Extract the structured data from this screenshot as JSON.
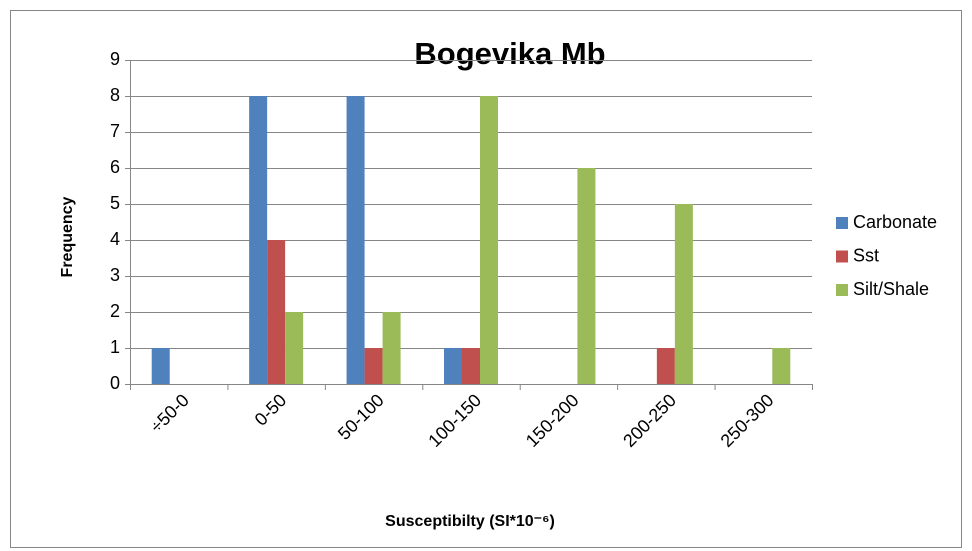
{
  "chart_data": {
    "type": "bar",
    "title": "Bogevika Mb",
    "x_label": "Susceptibilty (SI*10⁻⁶)",
    "y_label": "Frequency",
    "categories": [
      "÷50-0",
      "0-50",
      "50-100",
      "100-150",
      "150-200",
      "200-250",
      "250-300"
    ],
    "series": [
      {
        "name": "Carbonate",
        "color": "#4f81bd",
        "values": [
          1,
          8,
          8,
          1,
          0,
          0,
          0
        ]
      },
      {
        "name": "Sst",
        "color": "#c0504d",
        "values": [
          0,
          4,
          1,
          1,
          0,
          1,
          0
        ]
      },
      {
        "name": "Silt/Shale",
        "color": "#9bbb59",
        "values": [
          0,
          2,
          2,
          8,
          6,
          5,
          1
        ]
      }
    ],
    "ylim": [
      0,
      9
    ],
    "yticks": [
      0,
      1,
      2,
      3,
      4,
      5,
      6,
      7,
      8,
      9
    ],
    "grid": true,
    "legend": "right"
  }
}
